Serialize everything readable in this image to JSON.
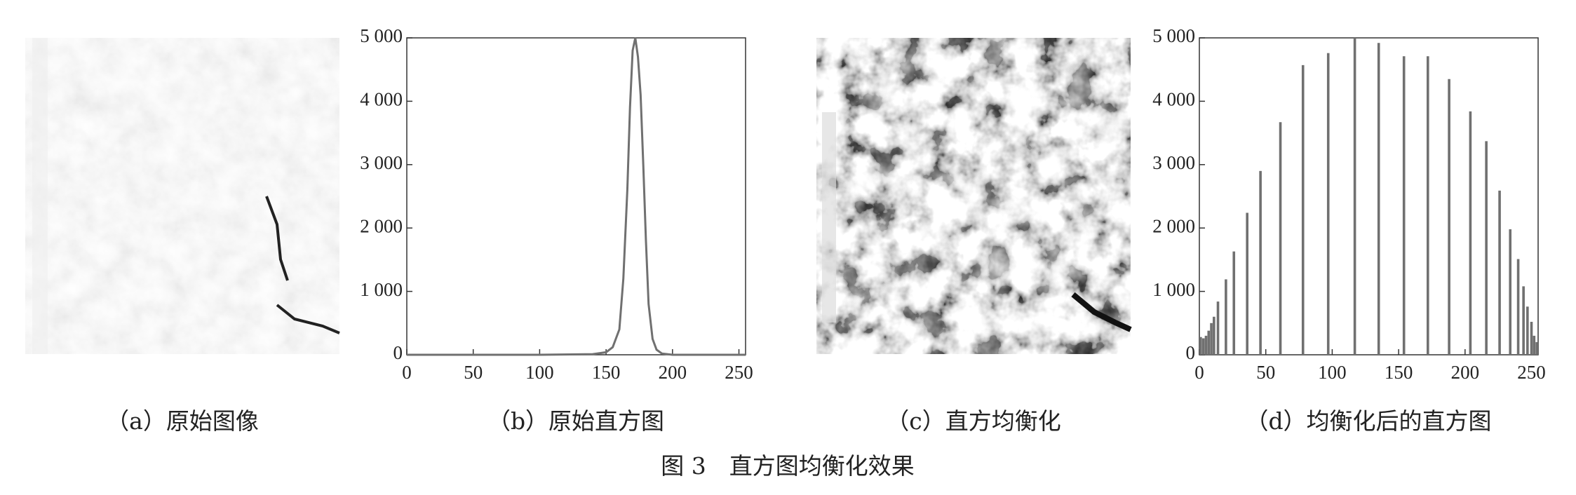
{
  "chart_data": [
    {
      "type": "line",
      "color": "#707070",
      "x": [
        0,
        50,
        100,
        140,
        150,
        155,
        160,
        163,
        166,
        168,
        170,
        172,
        174,
        176,
        178,
        180,
        182,
        185,
        188,
        192,
        200,
        255
      ],
      "values": [
        0,
        0,
        0,
        10,
        40,
        120,
        400,
        1200,
        2600,
        3900,
        4800,
        5000,
        4700,
        4100,
        3000,
        1800,
        800,
        250,
        80,
        20,
        0,
        0
      ],
      "xlim": [
        0,
        255
      ],
      "ylim": [
        0,
        5000
      ],
      "xticks": [
        0,
        50,
        100,
        150,
        200,
        250
      ],
      "yticks": [
        0,
        {
          "value": 1000,
          "label": "1 000"
        },
        {
          "value": 2000,
          "label": "2 000"
        },
        {
          "value": 3000,
          "label": "3 000"
        },
        {
          "value": 4000,
          "label": "4 000"
        },
        {
          "value": 5000,
          "label": "5 000"
        }
      ]
    },
    {
      "type": "bar",
      "color": "#707070",
      "x": [
        1,
        3,
        5,
        7,
        9,
        11,
        14,
        20,
        26,
        36,
        46,
        61,
        78,
        97,
        117,
        135,
        154,
        172,
        188,
        204,
        216,
        226,
        234,
        240,
        244,
        247,
        250,
        252,
        254
      ],
      "values": [
        280,
        260,
        300,
        380,
        500,
        600,
        840,
        1190,
        1630,
        2240,
        2900,
        3670,
        4570,
        4760,
        5000,
        4920,
        4710,
        4710,
        4350,
        3840,
        3370,
        2590,
        1980,
        1510,
        1080,
        760,
        520,
        300,
        200
      ],
      "xlim": [
        0,
        255
      ],
      "ylim": [
        0,
        5000
      ],
      "xticks": [
        0,
        50,
        100,
        150,
        200,
        250
      ],
      "yticks": [
        0,
        {
          "value": 1000,
          "label": "1 000"
        },
        {
          "value": 2000,
          "label": "2 000"
        },
        {
          "value": 3000,
          "label": "3 000"
        },
        {
          "value": 4000,
          "label": "4 000"
        },
        {
          "value": 5000,
          "label": "5 000"
        }
      ]
    }
  ],
  "captions": [
    "（a）原始图像",
    "（b）原始直方图",
    "（c）直方均衡化",
    "（d）均衡化后的直方图"
  ],
  "figure_caption": "图 3　直方图均衡化效果"
}
